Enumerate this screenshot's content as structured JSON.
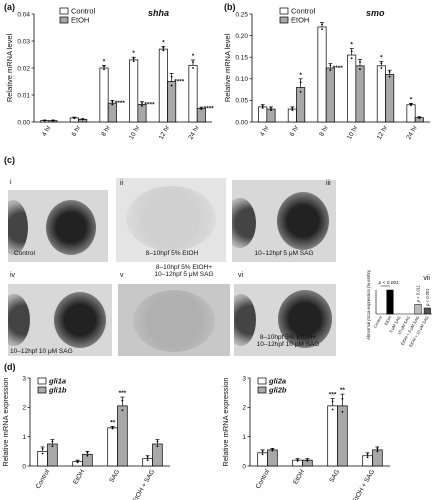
{
  "panels": {
    "a": "(a)",
    "b": "(b)",
    "c": "(c)",
    "d": "(d)"
  },
  "legend_labels": {
    "control": "Control",
    "etoh": "EtOH"
  },
  "photos": [
    {
      "roman": "i",
      "label": "Control"
    },
    {
      "roman": "ii",
      "label": "8–10hpf 5% EtOH"
    },
    {
      "roman": "iii",
      "label": "10–12hpf 5 μM SAG"
    },
    {
      "roman": "iv",
      "label": "10–12hpf 10 μM SAG"
    },
    {
      "roman": "v",
      "label": "8–10hpf 5% EtOH+\n10–12hpf 5 μM SAG"
    },
    {
      "roman": "vi",
      "label": "8–10hpf 5% EtOH+\n10–12hpf 10 μM SAG"
    }
  ],
  "colors": {
    "control": "#ffffff",
    "etoh": "#a8a8a8",
    "black": "#000000",
    "photo_bg": "#d8d8d8"
  },
  "chart_data": [
    {
      "id": "a",
      "type": "bar",
      "title": "shha",
      "ylabel": "Relative mRNA level",
      "ylim": [
        0,
        0.04
      ],
      "yticks": [
        "0.00",
        "0.01",
        "0.02",
        "0.03",
        "0.04"
      ],
      "categories": [
        "4 hr",
        "6 hr",
        "8 hr",
        "10 hr",
        "12 hr",
        "24 hr"
      ],
      "series": [
        {
          "name": "Control",
          "values": [
            0.0005,
            0.0015,
            0.02,
            0.023,
            0.027,
            0.021
          ],
          "errors": [
            0.0002,
            0.0003,
            0.001,
            0.001,
            0.001,
            0.002
          ]
        },
        {
          "name": "EtOH",
          "values": [
            0.0005,
            0.001,
            0.007,
            0.0065,
            0.015,
            0.005
          ],
          "errors": [
            0.0002,
            0.0002,
            0.001,
            0.001,
            0.003,
            0.0005
          ]
        }
      ],
      "annotations": [
        {
          "category": 2,
          "series": 0,
          "text": "*"
        },
        {
          "category": 3,
          "series": 0,
          "text": "*"
        },
        {
          "category": 4,
          "series": 0,
          "text": "*"
        },
        {
          "category": 5,
          "series": 0,
          "text": "*"
        },
        {
          "category": 2,
          "series": 1,
          "text": "****"
        },
        {
          "category": 3,
          "series": 1,
          "text": "****"
        },
        {
          "category": 4,
          "series": 1,
          "text": "****"
        },
        {
          "category": 5,
          "series": 1,
          "text": "****"
        }
      ]
    },
    {
      "id": "b",
      "type": "bar",
      "title": "smo",
      "ylabel": "Relative mRNA level",
      "ylim": [
        0,
        0.25
      ],
      "yticks": [
        "0.00",
        "0.05",
        "0.10",
        "0.15",
        "0.20",
        "0.25"
      ],
      "categories": [
        "4 hr",
        "6 hr",
        "8 hr",
        "10 hr",
        "12 hr",
        "24 hr"
      ],
      "series": [
        {
          "name": "Control",
          "values": [
            0.035,
            0.03,
            0.22,
            0.155,
            0.13,
            0.04
          ],
          "errors": [
            0.005,
            0.005,
            0.01,
            0.015,
            0.01,
            0.003
          ]
        },
        {
          "name": "EtOH",
          "values": [
            0.03,
            0.08,
            0.125,
            0.13,
            0.11,
            0.01
          ],
          "errors": [
            0.005,
            0.02,
            0.01,
            0.015,
            0.01,
            0.002
          ]
        }
      ],
      "annotations": [
        {
          "category": 1,
          "series": 1,
          "text": "*"
        },
        {
          "category": 2,
          "series": 1,
          "text": "****"
        },
        {
          "category": 3,
          "series": 0,
          "text": "*"
        },
        {
          "category": 4,
          "series": 0,
          "text": "*"
        },
        {
          "category": 5,
          "series": 0,
          "text": "*"
        }
      ]
    },
    {
      "id": "c-vii",
      "type": "bar",
      "title": "vii",
      "ylabel": "Abnormal ptc1a expression (% embryos)",
      "ylim": [
        0,
        100
      ],
      "categories": [
        "Control",
        "EtOH",
        "5 μM SAG",
        "10 μM SAG",
        "EtOH + 5 μM SAG",
        "EtOH + 10 μM SAG"
      ],
      "values": [
        0,
        100,
        0,
        0,
        40,
        25
      ],
      "annotations": [
        {
          "text": "p < 0.001",
          "from": 0,
          "to": 1
        },
        {
          "text": "p = 0.011",
          "at": 4
        },
        {
          "text": "p < 0.001",
          "at": 5
        }
      ]
    },
    {
      "id": "d-left",
      "type": "bar",
      "ylabel": "Relative mRNA expression",
      "ylim": [
        0,
        3
      ],
      "yticks": [
        "0",
        "1",
        "2",
        "3"
      ],
      "categories": [
        "Control",
        "EtOH",
        "SAG",
        "EtOH + SAG"
      ],
      "series": [
        {
          "name": "gli1a",
          "values": [
            0.5,
            0.15,
            1.3,
            0.25
          ],
          "errors": [
            0.15,
            0.05,
            0.05,
            0.1
          ]
        },
        {
          "name": "gli1b",
          "values": [
            0.75,
            0.4,
            2.05,
            0.75
          ],
          "errors": [
            0.15,
            0.1,
            0.3,
            0.15
          ]
        }
      ],
      "annotations": [
        {
          "category": 2,
          "series": 0,
          "text": "**"
        },
        {
          "category": 2,
          "series": 1,
          "text": "***"
        }
      ]
    },
    {
      "id": "d-right",
      "type": "bar",
      "ylabel": "Relative mRNA expression",
      "ylim": [
        0,
        3
      ],
      "yticks": [
        "0",
        "1",
        "2",
        "3"
      ],
      "categories": [
        "Control",
        "EtOH",
        "SAG",
        "EtOH + SAG"
      ],
      "series": [
        {
          "name": "gli2a",
          "values": [
            0.45,
            0.2,
            2.05,
            0.35
          ],
          "errors": [
            0.1,
            0.05,
            0.25,
            0.1
          ]
        },
        {
          "name": "gli2b",
          "values": [
            0.55,
            0.2,
            2.05,
            0.55
          ],
          "errors": [
            0.05,
            0.05,
            0.4,
            0.1
          ]
        }
      ],
      "annotations": [
        {
          "category": 2,
          "series": 0,
          "text": "***"
        },
        {
          "category": 2,
          "series": 1,
          "text": "**"
        }
      ]
    }
  ]
}
